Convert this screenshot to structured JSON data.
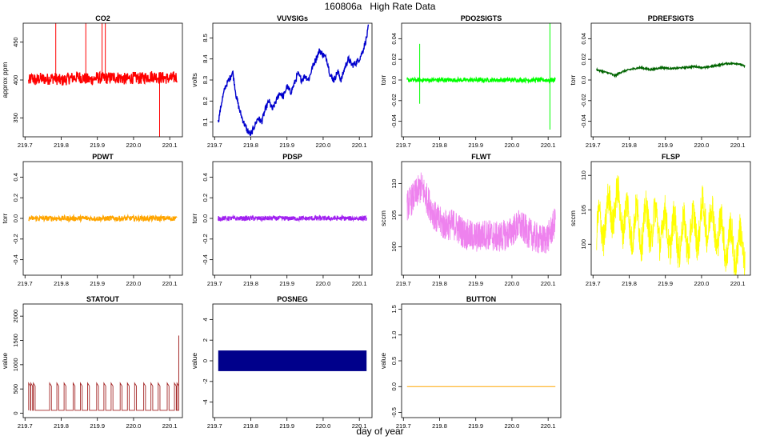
{
  "figure": {
    "title": "160806a   High Rate Data",
    "xlabel": "day of year"
  },
  "chart_data": [
    {
      "type": "line",
      "title": "CO2",
      "ylabel": "approx ppm",
      "color": "#ff0000",
      "xlim": [
        219.695,
        220.135
      ],
      "ylim": [
        325,
        475
      ],
      "xticks": [
        "219.7",
        "219.8",
        "219.9",
        "220.0",
        "220.1"
      ],
      "yticks": [
        350,
        400,
        450
      ],
      "x": [
        219.71,
        219.72,
        219.73,
        219.74,
        219.76,
        219.78,
        219.8,
        219.82,
        219.85,
        219.88,
        219.9,
        219.92,
        219.95,
        219.98,
        220.0,
        220.02,
        220.05,
        220.08,
        220.1,
        220.12
      ],
      "values": [
        398,
        403,
        399,
        402,
        401,
        403,
        399,
        402,
        404,
        400,
        403,
        402,
        404,
        401,
        403,
        402,
        405,
        403,
        402,
        404
      ],
      "noise": 8,
      "spikes": [
        {
          "x": 219.785,
          "y": 475
        },
        {
          "x": 219.868,
          "y": 475
        },
        {
          "x": 219.913,
          "y": 475
        },
        {
          "x": 219.922,
          "y": 475
        },
        {
          "x": 220.072,
          "y": 325
        }
      ]
    },
    {
      "type": "line",
      "title": "VUVSIGs",
      "ylabel": "volts",
      "color": "#0000cd",
      "xlim": [
        219.695,
        220.135
      ],
      "ylim": [
        8.03,
        8.57
      ],
      "xticks": [
        "219.7",
        "219.8",
        "219.9",
        "220.0",
        "220.1"
      ],
      "yticks": [
        8.1,
        8.2,
        8.3,
        8.4,
        8.5
      ],
      "x": [
        219.71,
        219.72,
        219.73,
        219.74,
        219.75,
        219.76,
        219.77,
        219.78,
        219.79,
        219.8,
        219.81,
        219.82,
        219.83,
        219.84,
        219.85,
        219.86,
        219.87,
        219.88,
        219.89,
        219.9,
        219.91,
        219.92,
        219.93,
        219.94,
        219.95,
        219.96,
        219.97,
        219.98,
        219.99,
        220.0,
        220.01,
        220.02,
        220.03,
        220.04,
        220.05,
        220.06,
        220.07,
        220.08,
        220.09,
        220.1,
        220.11,
        220.12,
        220.125
      ],
      "values": [
        8.1,
        8.2,
        8.27,
        8.3,
        8.34,
        8.22,
        8.15,
        8.1,
        8.06,
        8.04,
        8.08,
        8.12,
        8.1,
        8.16,
        8.2,
        8.16,
        8.2,
        8.24,
        8.22,
        8.27,
        8.24,
        8.28,
        8.33,
        8.3,
        8.32,
        8.3,
        8.36,
        8.4,
        8.44,
        8.42,
        8.4,
        8.32,
        8.3,
        8.34,
        8.3,
        8.36,
        8.4,
        8.37,
        8.38,
        8.4,
        8.44,
        8.5,
        8.55
      ],
      "noise": 0.015
    },
    {
      "type": "line",
      "title": "PDO2SIGTS",
      "ylabel": "torr",
      "color": "#00ff00",
      "xlim": [
        219.695,
        220.135
      ],
      "ylim": [
        -0.055,
        0.055
      ],
      "xticks": [
        "219.7",
        "219.8",
        "219.9",
        "220.0",
        "220.1"
      ],
      "yticks": [
        -0.04,
        -0.02,
        0.0,
        0.02,
        0.04
      ],
      "x": [
        219.71,
        220.12
      ],
      "values": [
        0.0,
        0.0
      ],
      "noise": 0.002,
      "spikes": [
        {
          "x": 219.745,
          "y": 0.035
        },
        {
          "x": 219.745,
          "y": -0.023
        },
        {
          "x": 220.105,
          "y": 0.055
        },
        {
          "x": 220.105,
          "y": -0.048
        }
      ]
    },
    {
      "type": "line",
      "title": "PDREFSIGTS",
      "ylabel": "torr",
      "color": "#006400",
      "xlim": [
        219.695,
        220.135
      ],
      "ylim": [
        -0.055,
        0.055
      ],
      "xticks": [
        "219.7",
        "219.8",
        "219.9",
        "220.0",
        "220.1"
      ],
      "yticks": [
        -0.04,
        -0.02,
        0.0,
        0.02,
        0.04
      ],
      "x": [
        219.71,
        219.73,
        219.75,
        219.76,
        219.78,
        219.8,
        219.83,
        219.86,
        219.89,
        219.92,
        219.95,
        219.98,
        220.01,
        220.04,
        220.07,
        220.1,
        220.12
      ],
      "values": [
        0.01,
        0.008,
        0.006,
        0.004,
        0.008,
        0.01,
        0.012,
        0.01,
        0.012,
        0.011,
        0.012,
        0.013,
        0.012,
        0.014,
        0.016,
        0.016,
        0.013
      ],
      "noise": 0.0008
    },
    {
      "type": "line",
      "title": "PDWT",
      "ylabel": "torr",
      "color": "#ffa500",
      "xlim": [
        219.695,
        220.135
      ],
      "ylim": [
        -0.55,
        0.55
      ],
      "xticks": [
        "219.7",
        "219.8",
        "219.9",
        "220.0",
        "220.1"
      ],
      "yticks": [
        -0.4,
        -0.2,
        0.0,
        0.2,
        0.4
      ],
      "x": [
        219.71,
        220.12
      ],
      "values": [
        0.0,
        0.0
      ],
      "noise": 0.025
    },
    {
      "type": "line",
      "title": "PDSP",
      "ylabel": "torr",
      "color": "#a020f0",
      "xlim": [
        219.695,
        220.135
      ],
      "ylim": [
        -0.55,
        0.55
      ],
      "xticks": [
        "219.7",
        "219.8",
        "219.9",
        "220.0",
        "220.1"
      ],
      "yticks": [
        -0.4,
        -0.2,
        0.0,
        0.2,
        0.4
      ],
      "x": [
        219.71,
        220.12
      ],
      "values": [
        0.0,
        0.0
      ],
      "noise": 0.022
    },
    {
      "type": "area",
      "title": "FLWT",
      "ylabel": "sccm",
      "color": "#ee82ee",
      "xlim": [
        219.695,
        220.135
      ],
      "ylim": [
        95.5,
        113.5
      ],
      "xticks": [
        "219.7",
        "219.8",
        "219.9",
        "220.0",
        "220.1"
      ],
      "yticks": [
        100,
        105,
        110
      ],
      "x": [
        219.71,
        219.73,
        219.75,
        219.77,
        219.79,
        219.81,
        219.84,
        219.87,
        219.9,
        219.93,
        219.96,
        219.99,
        220.02,
        220.05,
        220.08,
        220.1,
        220.12
      ],
      "values": [
        106.5,
        108,
        109.5,
        107,
        104.5,
        103.5,
        103.5,
        102,
        101.5,
        102,
        101.5,
        102,
        103.5,
        102,
        101,
        101.5,
        104
      ],
      "band": 2.5
    },
    {
      "type": "area",
      "title": "FLSP",
      "ylabel": "sccm",
      "color": "#ffff00",
      "xlim": [
        219.695,
        220.135
      ],
      "ylim": [
        95.5,
        112
      ],
      "xticks": [
        "219.7",
        "219.8",
        "219.9",
        "220.0",
        "220.1"
      ],
      "yticks": [
        100,
        105,
        110
      ],
      "x": [
        219.71,
        219.74,
        219.76,
        219.78,
        219.8,
        219.83,
        219.86,
        219.89,
        219.92,
        219.95,
        219.98,
        220.01,
        220.03,
        220.06,
        220.09,
        220.12
      ],
      "values": [
        101.5,
        104,
        106,
        104.5,
        103,
        102.5,
        103,
        102.5,
        101.5,
        101,
        102,
        104,
        103,
        101,
        99.5,
        99.5
      ],
      "band": 2.5,
      "oscillation": {
        "period": 0.026,
        "amplitude": 2.6
      }
    },
    {
      "type": "line",
      "title": "STATOUT",
      "ylabel": "value",
      "color": "#a52a2a",
      "xlim": [
        219.695,
        220.135
      ],
      "ylim": [
        -90,
        2250
      ],
      "xticks": [
        "219.7",
        "219.8",
        "219.9",
        "220.0",
        "220.1"
      ],
      "yticks": [
        0,
        500,
        1000,
        1500,
        2000
      ],
      "x": [
        219.71,
        220.12
      ],
      "values": [
        60,
        60
      ],
      "pulses": [
        219.712,
        219.718,
        219.725,
        219.77,
        219.79,
        219.81,
        219.835,
        219.855,
        219.875,
        219.9,
        219.92,
        219.94,
        219.965,
        219.985,
        220.005,
        220.03,
        220.05,
        220.07,
        220.095,
        220.115,
        220.122
      ],
      "pulse_value": 620,
      "spikes": [
        {
          "x": 220.125,
          "y": 1600
        }
      ]
    },
    {
      "type": "area",
      "title": "POSNEG",
      "ylabel": "value",
      "color": "#00008b",
      "xlim": [
        219.695,
        220.135
      ],
      "ylim": [
        -5.5,
        5.5
      ],
      "xticks": [
        "219.7",
        "219.8",
        "219.9",
        "220.0",
        "220.1"
      ],
      "yticks": [
        -4,
        -2,
        0,
        2,
        4
      ],
      "x": [
        219.71,
        220.12
      ],
      "upper": [
        1,
        1
      ],
      "lower": [
        -1,
        -1
      ]
    },
    {
      "type": "line",
      "title": "BUTTON",
      "ylabel": "value",
      "color": "#ffa500",
      "xlim": [
        219.695,
        220.135
      ],
      "ylim": [
        -0.6,
        1.6
      ],
      "xticks": [
        "219.7",
        "219.8",
        "219.9",
        "220.0",
        "220.1"
      ],
      "yticks": [
        -0.5,
        0.0,
        0.5,
        1.0,
        1.5
      ],
      "x": [
        219.71,
        220.12
      ],
      "values": [
        0,
        0
      ]
    }
  ]
}
